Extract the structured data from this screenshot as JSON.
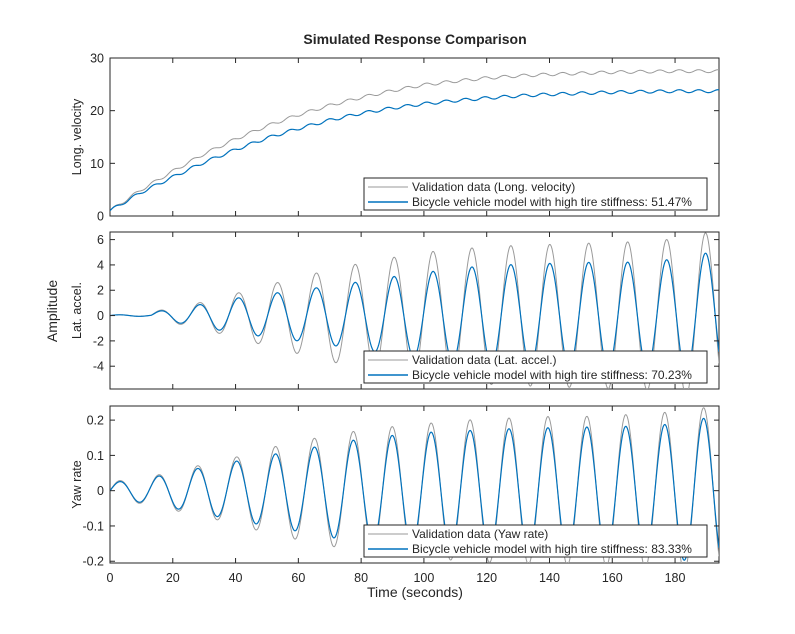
{
  "figure": {
    "title": "Simulated Response Comparison",
    "xlabel": "Time (seconds)",
    "common_ylabel": "Amplitude"
  },
  "colors": {
    "validation": "#9a9a9a",
    "model": "#0072bd"
  },
  "chart_data": [
    {
      "type": "line",
      "ylabel": "Long. velocity",
      "xlim": [
        0,
        194
      ],
      "ylim": [
        0,
        30
      ],
      "xticks": [
        0,
        20,
        40,
        60,
        80,
        100,
        120,
        140,
        160,
        180
      ],
      "yticks": [
        0,
        10,
        20,
        30
      ],
      "ytick_labels": [
        "0",
        "10",
        "20",
        "30"
      ],
      "grid": false,
      "legend_position": "bottom-right",
      "series": [
        {
          "name": "Validation data (Long. velocity)",
          "x": [
            0,
            10,
            20,
            30,
            40,
            50,
            60,
            70,
            80,
            90,
            100,
            110,
            120,
            130,
            140,
            150,
            160,
            170,
            180,
            194
          ],
          "y": [
            1,
            5,
            8.5,
            11.8,
            14.6,
            17.1,
            19.2,
            21,
            22.5,
            23.8,
            24.9,
            25.6,
            26.2,
            26.6,
            26.9,
            27.1,
            27.3,
            27.4,
            27.5,
            27.5
          ]
        },
        {
          "name": "Bicycle vehicle model with high tire stiffness: 51.47%",
          "x": [
            0,
            10,
            20,
            30,
            40,
            50,
            60,
            70,
            80,
            90,
            100,
            110,
            120,
            130,
            140,
            150,
            160,
            170,
            180,
            194
          ],
          "y": [
            1,
            4.5,
            7.4,
            10.2,
            12.6,
            14.8,
            16.6,
            18.2,
            19.5,
            20.5,
            21.3,
            21.9,
            22.4,
            22.8,
            23.1,
            23.3,
            23.5,
            23.6,
            23.7,
            23.7
          ]
        }
      ]
    },
    {
      "type": "line",
      "ylabel": "Lat. accel.",
      "xlim": [
        0,
        194
      ],
      "ylim": [
        -5.8,
        6.6
      ],
      "xticks": [
        0,
        20,
        40,
        60,
        80,
        100,
        120,
        140,
        160,
        180
      ],
      "yticks": [
        -4,
        -2,
        0,
        2,
        4,
        6
      ],
      "ytick_labels": [
        "-4",
        "-2",
        "0",
        "2",
        "4",
        "6"
      ],
      "grid": false,
      "legend_position": "bottom-right",
      "oscillation": {
        "start_time": 13,
        "period": 12.4
      },
      "series": [
        {
          "name": "Validation data (Lat. accel.)",
          "envelope_x": [
            0,
            13,
            25,
            38,
            50,
            63,
            75,
            88,
            100,
            113,
            125,
            138,
            150,
            163,
            175,
            188,
            194
          ],
          "envelope_y": [
            0,
            0.3,
            0.8,
            1.6,
            2.4,
            3.2,
            3.9,
            4.5,
            5.0,
            5.3,
            5.5,
            5.6,
            5.7,
            5.8,
            5.9,
            6.5,
            6.6
          ]
        },
        {
          "name": "Bicycle vehicle model with high tire stiffness: 70.23%",
          "envelope_x": [
            0,
            13,
            25,
            38,
            50,
            63,
            75,
            88,
            100,
            113,
            125,
            138,
            150,
            163,
            175,
            188,
            194
          ],
          "envelope_y": [
            0,
            0.25,
            0.7,
            1.3,
            1.7,
            2.1,
            2.5,
            3.0,
            3.4,
            3.8,
            4.0,
            4.1,
            4.2,
            4.2,
            4.3,
            4.9,
            5.0
          ]
        }
      ]
    },
    {
      "type": "line",
      "ylabel": "Yaw rate",
      "xlim": [
        0,
        194
      ],
      "ylim": [
        -0.205,
        0.24
      ],
      "xticks": [
        0,
        20,
        40,
        60,
        80,
        100,
        120,
        140,
        160,
        180
      ],
      "yticks": [
        -0.2,
        -0.1,
        0,
        0.1,
        0.2
      ],
      "ytick_labels": [
        "-0.2",
        "-0.1",
        "0",
        "0.1",
        "0.2"
      ],
      "grid": false,
      "legend_position": "bottom-right",
      "oscillation": {
        "start_time": 0,
        "period": 12.4
      },
      "series": [
        {
          "name": "Validation data (Yaw rate)",
          "envelope_x": [
            0,
            13,
            25,
            38,
            50,
            63,
            75,
            88,
            100,
            113,
            125,
            138,
            150,
            163,
            175,
            188,
            194
          ],
          "envelope_y": [
            0.025,
            0.04,
            0.065,
            0.09,
            0.12,
            0.145,
            0.165,
            0.18,
            0.19,
            0.2,
            0.205,
            0.21,
            0.21,
            0.215,
            0.22,
            0.235,
            0.235
          ]
        },
        {
          "name": "Bicycle vehicle model with high tire stiffness: 83.33%",
          "envelope_x": [
            0,
            13,
            25,
            38,
            50,
            63,
            75,
            88,
            100,
            113,
            125,
            138,
            150,
            163,
            175,
            188,
            194
          ],
          "envelope_y": [
            0.022,
            0.037,
            0.058,
            0.08,
            0.1,
            0.12,
            0.14,
            0.155,
            0.165,
            0.17,
            0.175,
            0.178,
            0.18,
            0.182,
            0.185,
            0.205,
            0.205
          ]
        }
      ]
    }
  ]
}
